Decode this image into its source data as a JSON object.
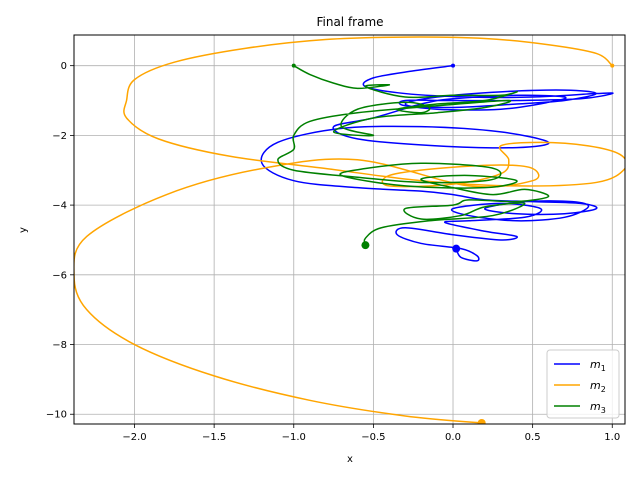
{
  "chart_data": {
    "type": "line",
    "title": "Final frame",
    "xlabel": "x",
    "ylabel": "y",
    "xlim": [
      -2.38,
      1.08
    ],
    "ylim": [
      -10.28,
      0.88
    ],
    "xticks": [
      -2.0,
      -1.5,
      -1.0,
      -0.5,
      0.0,
      0.5,
      1.0
    ],
    "xtick_labels": [
      "−2.0",
      "−1.5",
      "−1.0",
      "−0.5",
      "0.0",
      "0.5",
      "1.0"
    ],
    "yticks": [
      0,
      -2,
      -4,
      -6,
      -8,
      -10
    ],
    "ytick_labels": [
      "0",
      "−2",
      "−4",
      "−6",
      "−8",
      "−10"
    ],
    "grid": true,
    "legend_position": "lower-right",
    "series": [
      {
        "name": "m1",
        "label_main": "m",
        "label_sub": "1",
        "color": "#0000ff",
        "start": [
          0.0,
          0.0
        ],
        "end": [
          0.02,
          -5.25
        ],
        "points": [
          [
            0.0,
            0.0
          ],
          [
            -0.25,
            -0.15
          ],
          [
            -0.5,
            -0.35
          ],
          [
            -0.55,
            -0.6
          ],
          [
            -0.3,
            -0.8
          ],
          [
            0.1,
            -0.9
          ],
          [
            0.5,
            -0.9
          ],
          [
            0.9,
            -0.8
          ],
          [
            1.0,
            -0.8
          ],
          [
            0.8,
            -0.95
          ],
          [
            0.4,
            -1.0
          ],
          [
            0.0,
            -1.0
          ],
          [
            -0.3,
            -1.0
          ],
          [
            -0.3,
            -1.15
          ],
          [
            0.0,
            -1.2
          ],
          [
            0.4,
            -1.1
          ],
          [
            0.7,
            -1.0
          ],
          [
            0.9,
            -0.8
          ],
          [
            0.7,
            -0.7
          ],
          [
            0.3,
            -0.75
          ],
          [
            -0.1,
            -0.9
          ],
          [
            -0.3,
            -1.1
          ],
          [
            -0.1,
            -1.25
          ],
          [
            0.3,
            -1.25
          ],
          [
            0.6,
            -1.05
          ],
          [
            0.7,
            -0.9
          ],
          [
            0.4,
            -0.85
          ],
          [
            0.0,
            -0.95
          ],
          [
            -0.2,
            -1.1
          ],
          [
            -0.5,
            -1.5
          ],
          [
            -0.75,
            -1.75
          ],
          [
            -0.6,
            -2.1
          ],
          [
            -0.1,
            -2.3
          ],
          [
            0.4,
            -2.35
          ],
          [
            0.6,
            -2.2
          ],
          [
            0.3,
            -1.9
          ],
          [
            -0.2,
            -1.75
          ],
          [
            -0.7,
            -1.8
          ],
          [
            -1.1,
            -2.2
          ],
          [
            -1.2,
            -2.8
          ],
          [
            -1.0,
            -3.3
          ],
          [
            -0.6,
            -3.5
          ],
          [
            -0.2,
            -3.6
          ],
          [
            0.0,
            -3.7
          ],
          [
            0.2,
            -3.85
          ],
          [
            0.5,
            -3.9
          ],
          [
            0.8,
            -3.95
          ],
          [
            0.9,
            -4.1
          ],
          [
            0.7,
            -4.25
          ],
          [
            0.4,
            -4.25
          ],
          [
            0.2,
            -4.1
          ],
          [
            0.45,
            -3.9
          ],
          [
            0.75,
            -3.9
          ],
          [
            0.85,
            -4.05
          ],
          [
            0.7,
            -4.35
          ],
          [
            0.4,
            -4.45
          ],
          [
            0.1,
            -4.3
          ],
          [
            0.0,
            -4.1
          ],
          [
            0.3,
            -3.95
          ],
          [
            0.55,
            -4.1
          ],
          [
            0.45,
            -4.35
          ],
          [
            0.1,
            -4.45
          ],
          [
            -0.05,
            -4.5
          ],
          [
            0.2,
            -4.75
          ],
          [
            0.4,
            -4.9
          ],
          [
            0.3,
            -5.0
          ],
          [
            0.0,
            -4.85
          ],
          [
            -0.3,
            -4.65
          ],
          [
            -0.35,
            -4.85
          ],
          [
            -0.2,
            -5.1
          ],
          [
            0.05,
            -5.25
          ],
          [
            0.15,
            -5.45
          ],
          [
            0.15,
            -5.6
          ],
          [
            0.05,
            -5.5
          ],
          [
            0.02,
            -5.25
          ]
        ]
      },
      {
        "name": "m2",
        "label_main": "m",
        "label_sub": "2",
        "color": "#ffa500",
        "start": [
          1.0,
          0.0
        ],
        "end": [
          0.18,
          -10.25
        ],
        "points": [
          [
            1.0,
            0.0
          ],
          [
            0.9,
            0.35
          ],
          [
            0.6,
            0.6
          ],
          [
            0.2,
            0.78
          ],
          [
            -0.3,
            0.82
          ],
          [
            -0.8,
            0.75
          ],
          [
            -1.3,
            0.5
          ],
          [
            -1.75,
            0.1
          ],
          [
            -2.0,
            -0.4
          ],
          [
            -2.05,
            -1.0
          ],
          [
            -2.05,
            -1.5
          ],
          [
            -1.85,
            -2.1
          ],
          [
            -1.4,
            -2.6
          ],
          [
            -0.8,
            -2.95
          ],
          [
            -0.2,
            -3.3
          ],
          [
            0.4,
            -3.45
          ],
          [
            0.9,
            -3.35
          ],
          [
            1.08,
            -2.95
          ],
          [
            1.05,
            -2.55
          ],
          [
            0.85,
            -2.3
          ],
          [
            0.55,
            -2.2
          ],
          [
            0.3,
            -2.3
          ],
          [
            0.35,
            -2.7
          ],
          [
            0.3,
            -3.1
          ],
          [
            0.0,
            -3.4
          ],
          [
            -0.4,
            -3.45
          ],
          [
            -0.4,
            -3.15
          ],
          [
            -0.1,
            -2.95
          ],
          [
            0.3,
            -2.85
          ],
          [
            0.5,
            -2.95
          ],
          [
            0.5,
            -3.3
          ],
          [
            0.1,
            -3.45
          ],
          [
            -0.6,
            -2.7
          ],
          [
            -1.2,
            -2.95
          ],
          [
            -1.8,
            -3.7
          ],
          [
            -2.3,
            -4.9
          ],
          [
            -2.38,
            -6.0
          ],
          [
            -2.3,
            -7.0
          ],
          [
            -2.0,
            -8.0
          ],
          [
            -1.5,
            -8.9
          ],
          [
            -0.9,
            -9.6
          ],
          [
            -0.3,
            -10.05
          ],
          [
            0.18,
            -10.25
          ]
        ]
      },
      {
        "name": "m3",
        "label_main": "m",
        "label_sub": "3",
        "color": "#008000",
        "start": [
          -1.0,
          0.0
        ],
        "end": [
          -0.55,
          -5.15
        ],
        "points": [
          [
            -1.0,
            0.0
          ],
          [
            -0.9,
            -0.25
          ],
          [
            -0.75,
            -0.5
          ],
          [
            -0.6,
            -0.65
          ],
          [
            -0.4,
            -0.55
          ],
          [
            -0.55,
            -0.6
          ],
          [
            -0.3,
            -0.9
          ],
          [
            0.0,
            -0.85
          ],
          [
            0.3,
            -0.85
          ],
          [
            0.4,
            -0.75
          ],
          [
            0.2,
            -1.0
          ],
          [
            -0.1,
            -1.1
          ],
          [
            -0.35,
            -1.25
          ],
          [
            -0.2,
            -1.35
          ],
          [
            -0.15,
            -1.2
          ],
          [
            -0.3,
            -1.05
          ],
          [
            -0.6,
            -1.25
          ],
          [
            -0.7,
            -1.75
          ],
          [
            -0.5,
            -2.0
          ],
          [
            -0.75,
            -1.9
          ],
          [
            -0.5,
            -1.5
          ],
          [
            -0.1,
            -1.35
          ],
          [
            0.2,
            -1.2
          ],
          [
            0.35,
            -1.0
          ],
          [
            -0.1,
            -1.15
          ],
          [
            -0.6,
            -1.35
          ],
          [
            -0.9,
            -1.6
          ],
          [
            -1.0,
            -2.0
          ],
          [
            -1.0,
            -2.4
          ],
          [
            -1.1,
            -2.7
          ],
          [
            -1.0,
            -3.0
          ],
          [
            -0.6,
            -3.2
          ],
          [
            -0.2,
            -3.35
          ],
          [
            0.2,
            -3.3
          ],
          [
            0.3,
            -3.1
          ],
          [
            0.2,
            -2.9
          ],
          [
            -0.2,
            -2.8
          ],
          [
            -0.55,
            -2.95
          ],
          [
            -0.7,
            -3.15
          ],
          [
            -0.3,
            -3.45
          ],
          [
            0.2,
            -3.5
          ],
          [
            0.4,
            -3.3
          ],
          [
            0.1,
            -3.15
          ],
          [
            -0.2,
            -3.25
          ],
          [
            0.0,
            -3.5
          ],
          [
            0.25,
            -3.7
          ],
          [
            0.45,
            -3.55
          ],
          [
            0.6,
            -3.75
          ],
          [
            0.4,
            -3.9
          ],
          [
            0.1,
            -3.85
          ],
          [
            0.0,
            -4.0
          ],
          [
            -0.3,
            -4.1
          ],
          [
            -0.2,
            -4.4
          ],
          [
            0.05,
            -4.3
          ],
          [
            0.2,
            -4.05
          ],
          [
            0.45,
            -3.95
          ],
          [
            0.25,
            -4.3
          ],
          [
            -0.15,
            -4.45
          ],
          [
            -0.45,
            -4.65
          ],
          [
            -0.55,
            -4.95
          ],
          [
            -0.55,
            -5.15
          ]
        ]
      }
    ]
  }
}
